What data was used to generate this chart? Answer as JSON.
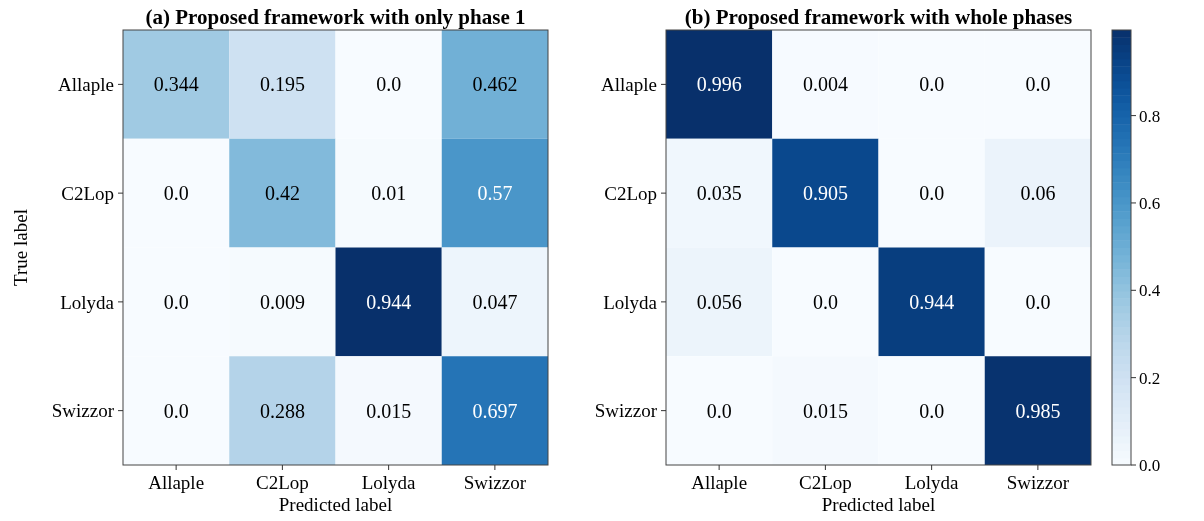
{
  "chart_data": [
    {
      "type": "heatmap",
      "title": "(a) Proposed framework with only phase 1",
      "xlabel": "Predicted label",
      "ylabel": "True label",
      "categories": [
        "Allaple",
        "C2Lop",
        "Lolyda",
        "Swizzor"
      ],
      "y_categories": [
        "Allaple",
        "C2Lop",
        "Lolyda",
        "Swizzor"
      ],
      "cells": [
        [
          0.344,
          0.195,
          0.0,
          0.462
        ],
        [
          0.0,
          0.42,
          0.01,
          0.57
        ],
        [
          0.0,
          0.009,
          0.944,
          0.047
        ],
        [
          0.0,
          0.288,
          0.015,
          0.697
        ]
      ],
      "cell_labels": [
        [
          "0.344",
          "0.195",
          "0.0",
          "0.462"
        ],
        [
          "0.0",
          "0.42",
          "0.01",
          "0.57"
        ],
        [
          "0.0",
          "0.009",
          "0.944",
          "0.047"
        ],
        [
          "0.0",
          "0.288",
          "0.015",
          "0.697"
        ]
      ]
    },
    {
      "type": "heatmap",
      "title": "(b) Proposed framework with whole phases",
      "xlabel": "Predicted label",
      "categories": [
        "Allaple",
        "C2Lop",
        "Lolyda",
        "Swizzor"
      ],
      "y_categories": [
        "Allaple",
        "C2Lop",
        "Lolyda",
        "Swizzor"
      ],
      "cells": [
        [
          0.996,
          0.004,
          0.0,
          0.0
        ],
        [
          0.035,
          0.905,
          0.0,
          0.06
        ],
        [
          0.056,
          0.0,
          0.944,
          0.0
        ],
        [
          0.0,
          0.015,
          0.0,
          0.985
        ]
      ],
      "cell_labels": [
        [
          "0.996",
          "0.004",
          "0.0",
          "0.0"
        ],
        [
          "0.035",
          "0.905",
          "0.0",
          "0.06"
        ],
        [
          "0.056",
          "0.0",
          "0.944",
          "0.0"
        ],
        [
          "0.0",
          "0.015",
          "0.0",
          "0.985"
        ]
      ],
      "clim": [
        0,
        0.996
      ],
      "cticks": [
        {
          "value": 0,
          "label": "0.0"
        },
        0.2,
        0.4,
        0.6,
        0.8
      ]
    }
  ]
}
